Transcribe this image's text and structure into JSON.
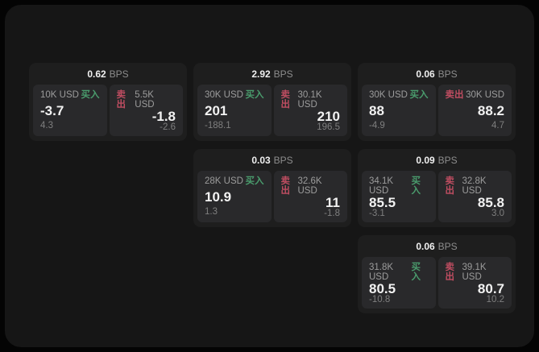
{
  "page": {
    "unit_label": "BPS",
    "buy_label": "买入",
    "sell_label": "卖出"
  },
  "colors": {
    "outer_background": "#040404",
    "surface": "#161616",
    "card": "#1e1e1e",
    "panel": "#29292b",
    "text_primary": "#f2f2f2",
    "text_secondary": "#9c9c9c",
    "text_muted": "#7f7f7f",
    "buy_green": "#4a9c6d",
    "sell_red": "#bf4d61"
  },
  "cards": [
    {
      "bps": "0.62",
      "buy": {
        "amount": "10K USD",
        "value": "-3.7",
        "sub": "4.3"
      },
      "sell": {
        "amount": "5.5K USD",
        "value": "-1.8",
        "sub": "-2.6"
      }
    },
    {
      "bps": "2.92",
      "buy": {
        "amount": "30K USD",
        "value": "201",
        "sub": "-188.1"
      },
      "sell": {
        "amount": "30.1K USD",
        "value": "210",
        "sub": "196.5"
      }
    },
    {
      "bps": "0.06",
      "buy": {
        "amount": "30K USD",
        "value": "88",
        "sub": "-4.9"
      },
      "sell": {
        "amount": "30K USD",
        "value": "88.2",
        "sub": "4.7"
      }
    },
    {
      "bps": "0.03",
      "buy": {
        "amount": "28K USD",
        "value": "10.9",
        "sub": "1.3"
      },
      "sell": {
        "amount": "32.6K USD",
        "value": "11",
        "sub": "-1.8"
      }
    },
    {
      "bps": "0.09",
      "buy": {
        "amount": "34.1K USD",
        "value": "85.5",
        "sub": "-3.1"
      },
      "sell": {
        "amount": "32.8K USD",
        "value": "85.8",
        "sub": "3.0"
      }
    },
    {
      "bps": "0.06",
      "buy": {
        "amount": "31.8K USD",
        "value": "80.5",
        "sub": "-10.8"
      },
      "sell": {
        "amount": "39.1K USD",
        "value": "80.7",
        "sub": "10.2"
      }
    }
  ]
}
